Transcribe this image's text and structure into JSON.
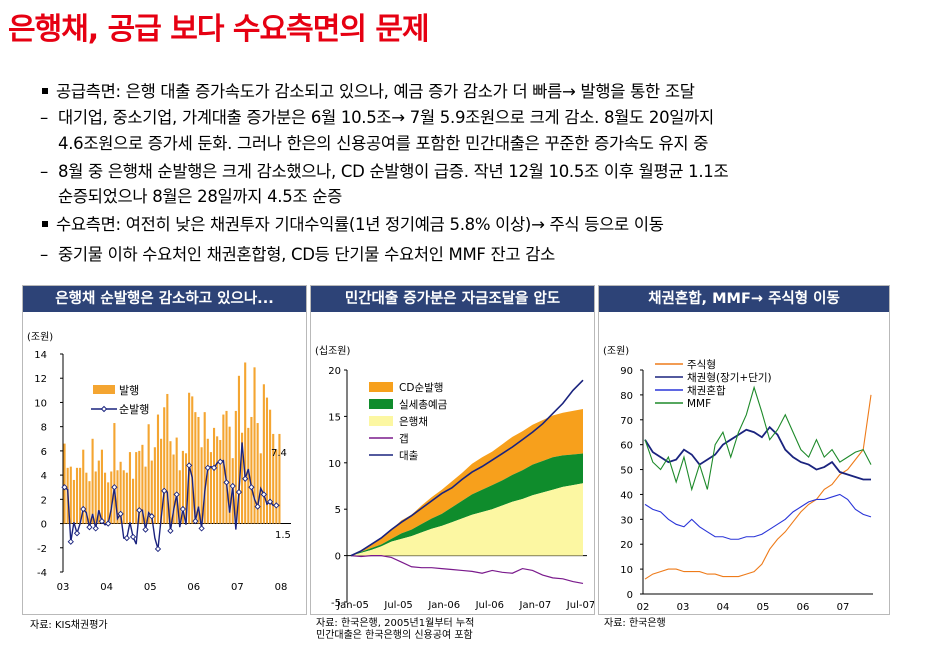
{
  "title": "은행채, 공급 보다 수요측면의 문제",
  "bullets": [
    {
      "mark": "▪",
      "text": "공급측면: 은행 대출 증가속도가 감소되고 있으나, 예금 증가 감소가 더 빠름→ 발행을 통한 조달"
    },
    {
      "mark": "–",
      "text": "대기업, 중소기업, 가계대출 증가분은 6월 10.5조→ 7월 5.9조원으로 크게 감소. 8월도 20일까지"
    },
    {
      "mark": "",
      "text": "4.6조원으로 증가세 둔화. 그러나 한은의 신용공여를 포함한 민간대출은 꾸준한 증가속도 유지 중"
    },
    {
      "mark": "–",
      "text": "8월 중 은행채 순발행은 크게 감소했으나, CD 순발행이 급증. 작년 12월 10.5조 이후 월평균 1.1조"
    },
    {
      "mark": "",
      "text": "순증되었으나 8월은 28일까지 4.5조 순증"
    },
    {
      "mark": "▪",
      "text": "수요측면: 여전히 낮은 채권투자 기대수익률(1년 정기예금 5.8% 이상)→ 주식 등으로 이동"
    },
    {
      "mark": "–",
      "text": "중기물 이하 수요처인 채권혼합형, CD등 단기물 수요처인 MMF 잔고 감소"
    }
  ],
  "chart_data": [
    {
      "type": "bar",
      "title": "은행채 순발행은 감소하고 있으나...",
      "ylabel": "(조원)",
      "ylim": [
        -4,
        14
      ],
      "yticks": [
        -4,
        -2,
        0,
        2,
        4,
        6,
        8,
        10,
        12,
        14
      ],
      "xticks": [
        "03",
        "04",
        "05",
        "06",
        "07",
        "08"
      ],
      "legend": [
        "발행",
        "순발행"
      ],
      "annotations": [
        "7.4",
        "1.5"
      ],
      "source": "자료: KIS채권평가",
      "series": [
        {
          "name": "발행",
          "values": [
            6.6,
            4.6,
            4.7,
            3.6,
            4.6,
            4.6,
            6.1,
            4.2,
            3.5,
            7.0,
            4.3,
            5.2,
            6.1,
            4.2,
            3.4,
            4.3,
            8.3,
            4.4,
            5.1,
            4.4,
            4.2,
            5.9,
            3.7,
            5.9,
            6.0,
            6.5,
            4.7,
            8.2,
            5.2,
            6.3,
            9.0,
            7.0,
            9.6,
            10.7,
            6.8,
            5.7,
            7.1,
            4.4,
            6.0,
            5.8,
            10.8,
            10.5,
            9.2,
            8.8,
            6.3,
            9.2,
            7.0,
            5.9,
            7.9,
            7.2,
            6.9,
            9.0,
            9.3,
            8.0,
            5.4,
            9.3,
            12.2,
            7.5,
            13.3,
            7.9,
            8.8,
            12.9,
            8.3,
            5.8,
            11.5,
            10.4,
            9.4,
            7.4,
            6.1,
            7.4
          ]
        },
        {
          "name": "순발행",
          "values": [
            3.0,
            2.8,
            -1.5,
            0.1,
            -0.8,
            0.0,
            1.2,
            0.9,
            -0.3,
            0.8,
            -0.4,
            1.1,
            0.2,
            -0.1,
            0.0,
            1.2,
            3.0,
            0.4,
            0.8,
            -1.2,
            -1.2,
            0.1,
            -1.1,
            -1.7,
            1.1,
            1.1,
            -0.5,
            0.9,
            0.6,
            -1.2,
            -2.1,
            0.4,
            2.7,
            2.6,
            -0.6,
            1.1,
            2.4,
            -0.3,
            1.2,
            -0.1,
            4.8,
            3.8,
            0.2,
            1.4,
            -0.4,
            2.6,
            4.6,
            4.7,
            4.6,
            5.0,
            5.1,
            5.2,
            3.4,
            0.9,
            3.1,
            -0.5,
            2.6,
            6.7,
            3.7,
            4.5,
            3.0,
            2.0,
            1.4,
            2.9,
            2.4,
            1.6,
            1.8,
            1.5,
            1.5,
            1.5
          ]
        }
      ]
    },
    {
      "type": "area",
      "title": "민간대출 증가분은 자금조달을 압도",
      "ylabel": "(십조원)",
      "ylim": [
        -5,
        20
      ],
      "yticks": [
        -5,
        0,
        5,
        10,
        15,
        20
      ],
      "xticks": [
        "Jan-05",
        "Jul-05",
        "Jan-06",
        "Jul-06",
        "Jan-07",
        "Jul-07"
      ],
      "legend": [
        "CD순발행",
        "실세총예금",
        "은행채",
        "갭",
        "대출"
      ],
      "source": "자료: 한국은행, 2005년1월부터 누적",
      "source2": "민간대출은 한국은행의 신용공여 포함",
      "series": [
        {
          "name": "은행채",
          "values": [
            0,
            0.3,
            0.6,
            1.0,
            1.5,
            1.8,
            2.1,
            2.5,
            2.9,
            3.2,
            3.6,
            4.0,
            4.4,
            4.7,
            5.0,
            5.4,
            5.8,
            6.1,
            6.5,
            6.8,
            7.1,
            7.4,
            7.6,
            7.8
          ]
        },
        {
          "name": "실세총예금",
          "values": [
            0,
            0.1,
            0.2,
            0.2,
            0.3,
            0.6,
            0.7,
            0.9,
            1.1,
            1.3,
            1.6,
            1.9,
            2.2,
            2.4,
            2.6,
            2.7,
            2.9,
            3.1,
            3.3,
            3.4,
            3.5,
            3.4,
            3.3,
            3.2
          ]
        },
        {
          "name": "CD순발행",
          "values": [
            0,
            0.2,
            0.4,
            0.7,
            1.0,
            1.4,
            1.6,
            2.0,
            2.3,
            2.6,
            2.8,
            3.0,
            3.3,
            3.5,
            3.6,
            3.9,
            4.1,
            4.2,
            4.3,
            4.4,
            4.5,
            4.6,
            4.7,
            4.8
          ]
        },
        {
          "name": "대출",
          "values": [
            0,
            0.5,
            1.2,
            1.9,
            2.8,
            3.6,
            4.3,
            5.1,
            5.9,
            6.7,
            7.3,
            8.2,
            9.0,
            9.6,
            10.3,
            11.0,
            11.7,
            12.5,
            13.3,
            14.2,
            15.3,
            16.4,
            17.8,
            18.9
          ]
        },
        {
          "name": "갭",
          "values": [
            0,
            -0.1,
            0.0,
            0.0,
            -0.2,
            -0.7,
            -1.2,
            -1.3,
            -1.3,
            -1.4,
            -1.5,
            -1.6,
            -1.7,
            -1.9,
            -1.6,
            -1.8,
            -1.9,
            -1.4,
            -1.6,
            -2.1,
            -2.4,
            -2.5,
            -2.8,
            -3.0
          ]
        }
      ]
    },
    {
      "type": "line",
      "title": "채권혼합, MMF→ 주식형 이동",
      "ylabel": "(조원)",
      "ylim": [
        0,
        90
      ],
      "yticks": [
        0,
        10,
        20,
        30,
        40,
        50,
        60,
        70,
        80,
        90
      ],
      "xticks": [
        "02",
        "03",
        "04",
        "05",
        "06",
        "07"
      ],
      "source": "자료: 한국은행",
      "series": [
        {
          "name": "주식형",
          "values": [
            6,
            8,
            9,
            10,
            10,
            9,
            9,
            9,
            8,
            8,
            7,
            7,
            7,
            8,
            9,
            12,
            18,
            22,
            25,
            29,
            33,
            36,
            38,
            42,
            44,
            48,
            50,
            54,
            58,
            80
          ]
        },
        {
          "name": "채권형(장기+단기)",
          "values": [
            62,
            57,
            55,
            53,
            54,
            58,
            56,
            52,
            54,
            56,
            60,
            62,
            64,
            66,
            65,
            63,
            67,
            64,
            58,
            55,
            53,
            52,
            50,
            51,
            53,
            49,
            48,
            47,
            46,
            46
          ]
        },
        {
          "name": "채권혼합",
          "values": [
            36,
            34,
            33,
            30,
            28,
            27,
            30,
            27,
            25,
            23,
            23,
            22,
            22,
            23,
            23,
            24,
            26,
            28,
            30,
            33,
            35,
            37,
            38,
            38,
            39,
            40,
            38,
            34,
            32,
            31
          ]
        },
        {
          "name": "MMF",
          "values": [
            62,
            53,
            50,
            55,
            45,
            55,
            42,
            52,
            42,
            60,
            65,
            55,
            65,
            72,
            83,
            73,
            62,
            66,
            72,
            65,
            58,
            55,
            62,
            55,
            58,
            53,
            55,
            57,
            58,
            52
          ]
        }
      ]
    }
  ]
}
